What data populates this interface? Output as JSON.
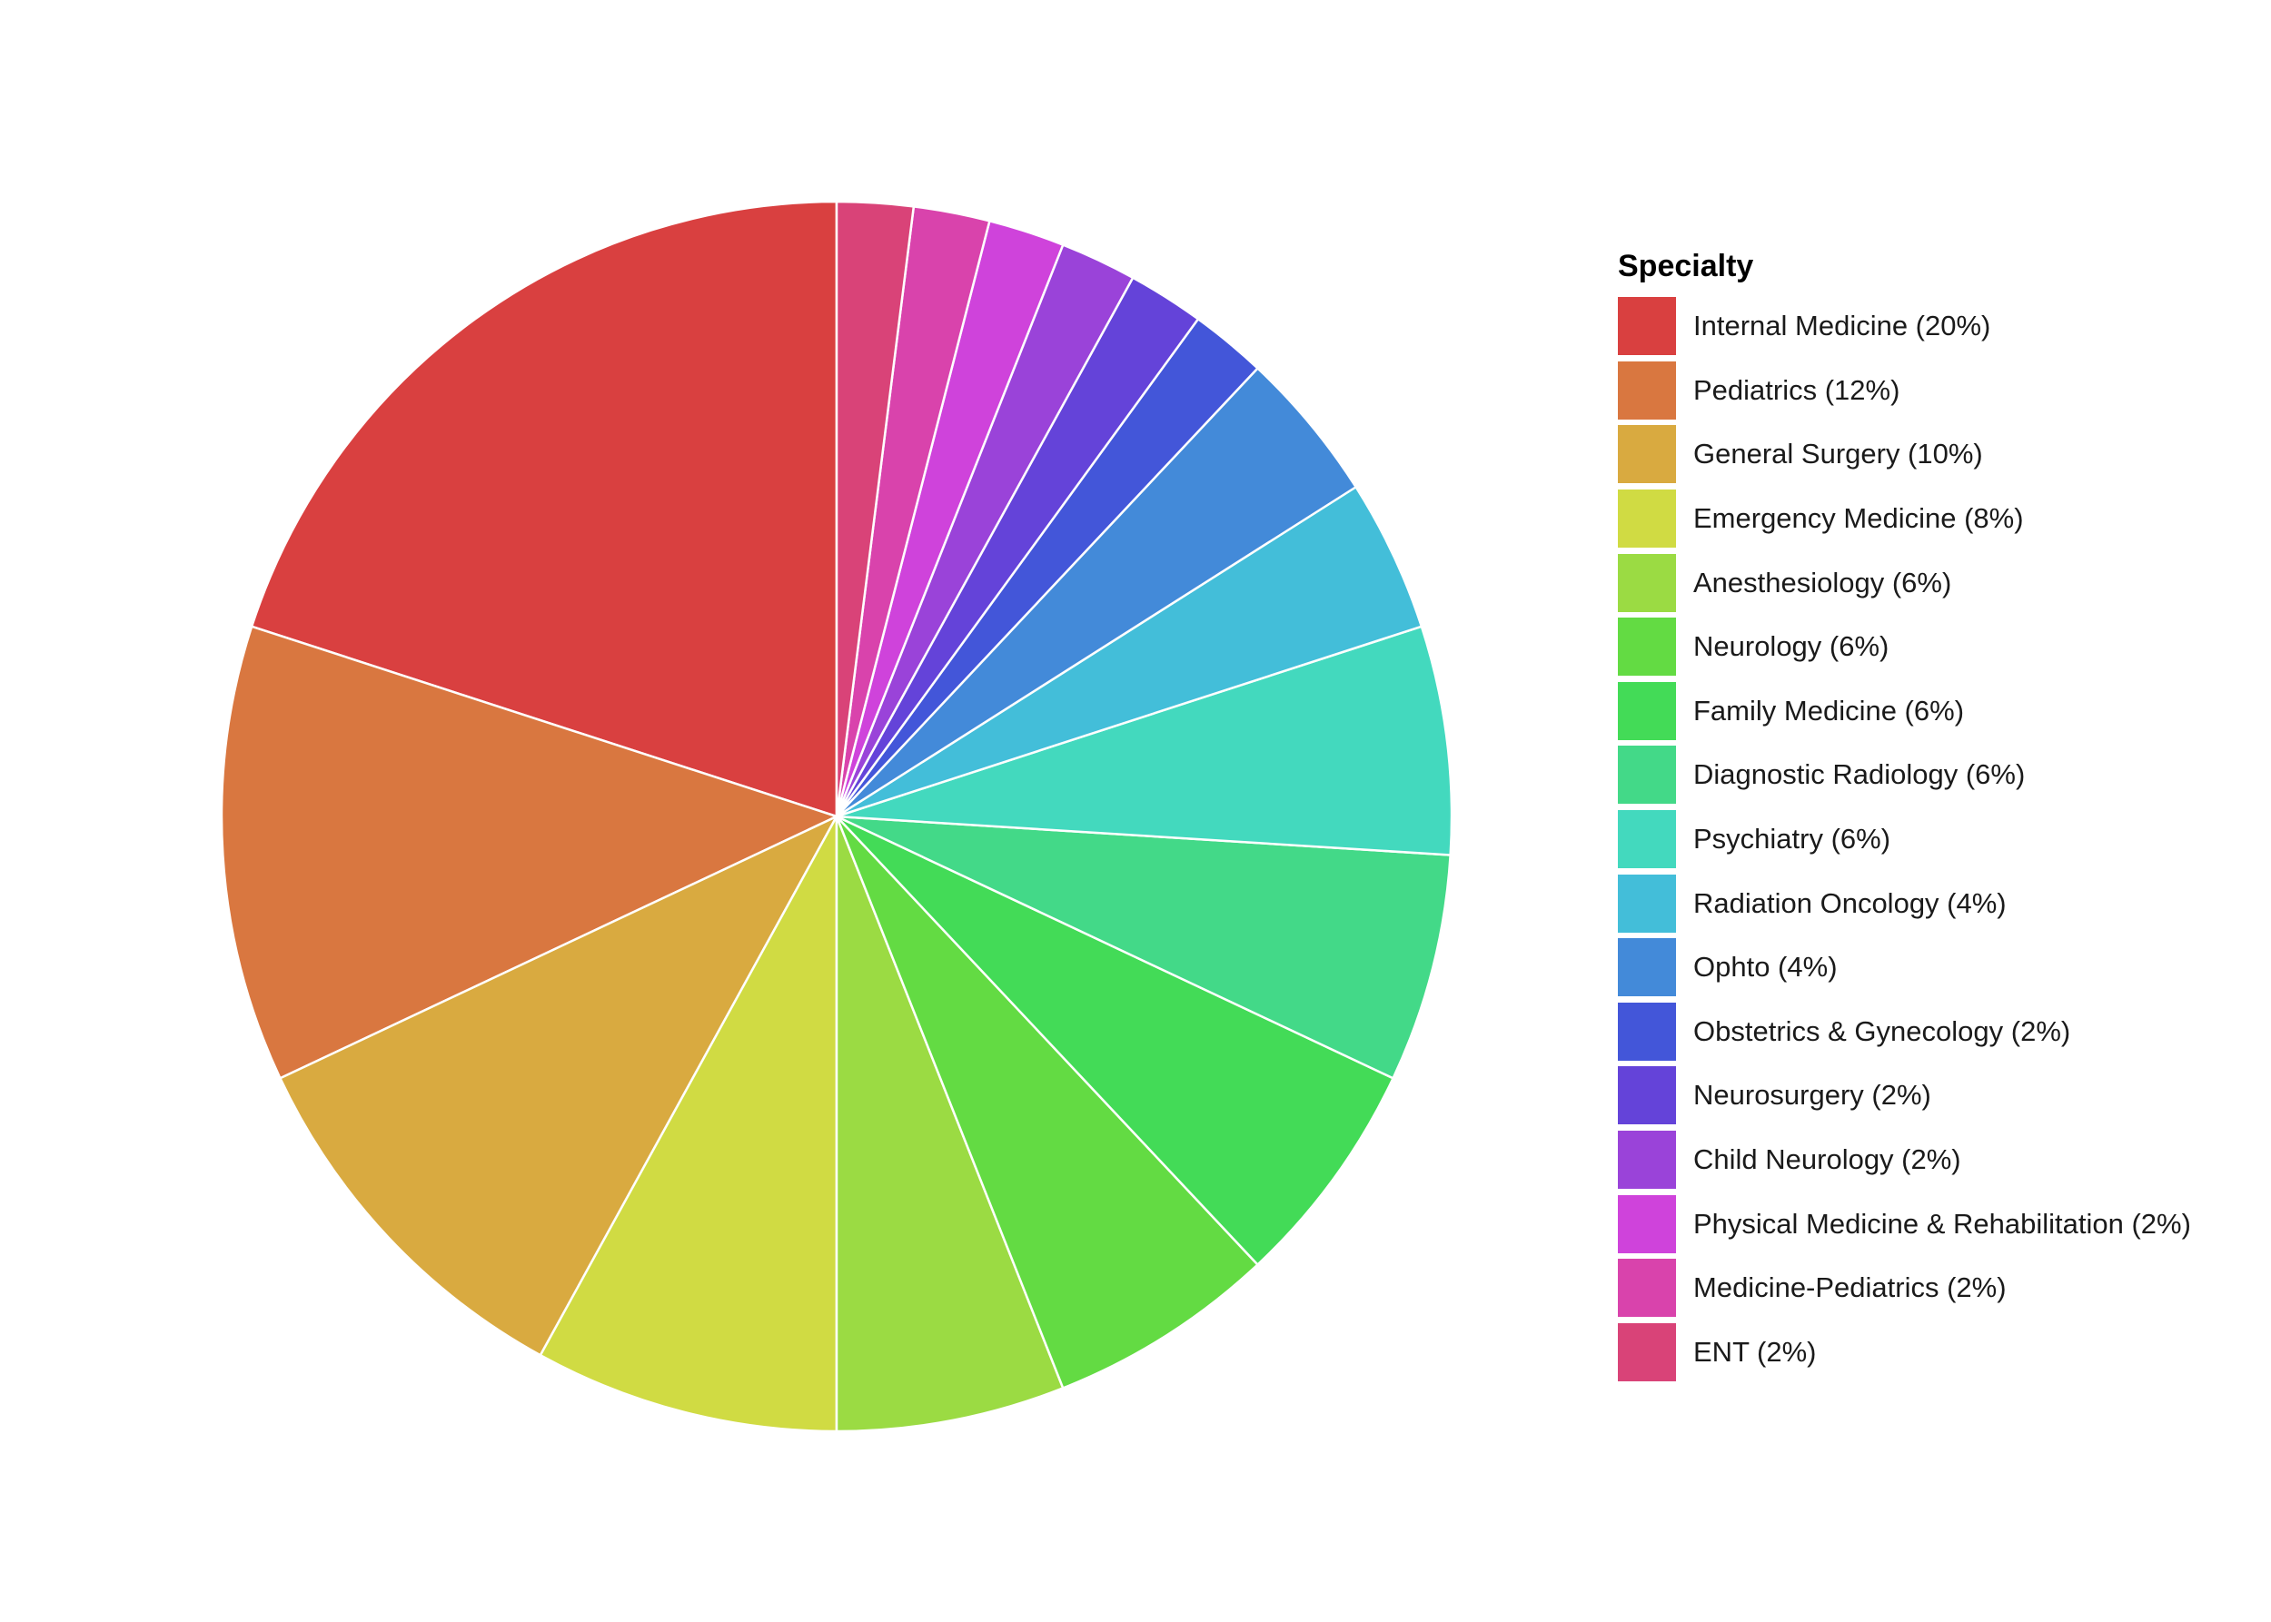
{
  "chart_data": {
    "type": "pie",
    "legend_title": "Specialty",
    "legend_position": "right",
    "start_angle_deg": 0,
    "direction": "counterclockwise",
    "slice_border_color": "#ffffff",
    "slices": [
      {
        "label": "Internal Medicine (20%)",
        "value": 20,
        "color": "#D94040"
      },
      {
        "label": "Pediatrics (12%)",
        "value": 12,
        "color": "#D97740"
      },
      {
        "label": "General Surgery (10%)",
        "value": 10,
        "color": "#D9AA40"
      },
      {
        "label": "Emergency Medicine (8%)",
        "value": 8,
        "color": "#D0DB43"
      },
      {
        "label": "Anesthesiology (6%)",
        "value": 6,
        "color": "#9BDB43"
      },
      {
        "label": "Neurology (6%)",
        "value": 6,
        "color": "#63DB43"
      },
      {
        "label": "Family Medicine (6%)",
        "value": 6,
        "color": "#43DB57"
      },
      {
        "label": "Diagnostic Radiology (6%)",
        "value": 6,
        "color": "#43D988"
      },
      {
        "label": "Psychiatry (6%)",
        "value": 6,
        "color": "#43D9BE"
      },
      {
        "label": "Radiation Oncology (4%)",
        "value": 4,
        "color": "#43BED9"
      },
      {
        "label": "Ophto (4%)",
        "value": 4,
        "color": "#438AD9"
      },
      {
        "label": "Obstetrics & Gynecology (2%)",
        "value": 2,
        "color": "#4356D9"
      },
      {
        "label": "Neurosurgery (2%)",
        "value": 2,
        "color": "#6443D9"
      },
      {
        "label": "Child Neurology (2%)",
        "value": 2,
        "color": "#9A43D9"
      },
      {
        "label": "Physical Medicine & Rehabilitation (2%)",
        "value": 2,
        "color": "#CF43DB"
      },
      {
        "label": "Medicine-Pediatrics (2%)",
        "value": 2,
        "color": "#D943AC"
      },
      {
        "label": "ENT (2%)",
        "value": 2,
        "color": "#D94378"
      }
    ]
  }
}
